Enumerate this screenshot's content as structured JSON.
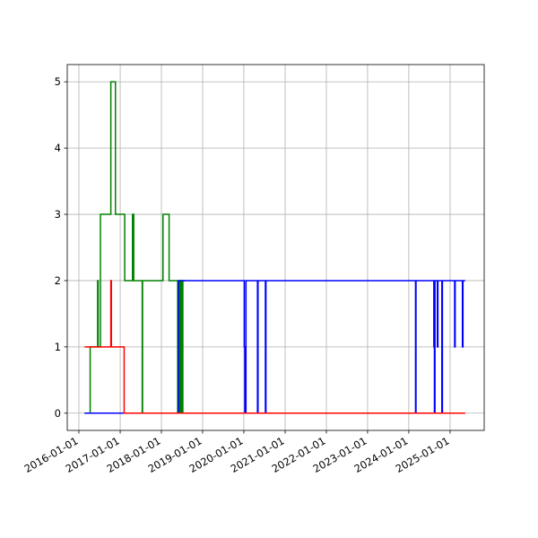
{
  "chart_data": {
    "type": "line",
    "drawstyle": "steps-post",
    "grid": true,
    "xlim": [
      "2015-09-20",
      "2025-10-30"
    ],
    "xticks": [
      "2016-01-01",
      "2017-01-01",
      "2018-01-01",
      "2019-01-01",
      "2020-01-01",
      "2021-01-01",
      "2022-01-01",
      "2023-01-01",
      "2024-01-01",
      "2025-01-01"
    ],
    "ylim": [
      -0.26,
      5.26
    ],
    "yticks": [
      0,
      1,
      2,
      3,
      4,
      5
    ],
    "series": [
      {
        "color": "#008000",
        "x": [
          "2016-02-20",
          "2016-04-10",
          "2016-06-15",
          "2016-06-20",
          "2016-07-10",
          "2016-10-10",
          "2016-11-20",
          "2017-02-10",
          "2017-04-20",
          "2017-05-01",
          "2017-07-15",
          "2017-07-18",
          "2018-01-15",
          "2018-03-10",
          "2018-05-25",
          "2018-05-28",
          "2018-06-05",
          "2018-06-08",
          "2018-06-15",
          "2018-06-18",
          "2018-06-25",
          "2018-06-28",
          "2018-07-05",
          "2018-07-10",
          "2018-08-01"
        ],
        "values": [
          0,
          1,
          2,
          1,
          3,
          5,
          3,
          2,
          3,
          2,
          0,
          2,
          3,
          2,
          0,
          2,
          0,
          2,
          0,
          2,
          0,
          2,
          0,
          2,
          2
        ]
      },
      {
        "color": "#0000ff",
        "x": [
          "2016-02-20",
          "2018-06-01",
          "2020-01-05",
          "2020-01-10",
          "2020-01-20",
          "2020-05-01",
          "2020-05-06",
          "2020-07-10",
          "2020-07-15",
          "2024-03-01",
          "2024-03-05",
          "2024-08-10",
          "2024-08-15",
          "2024-08-20",
          "2024-09-10",
          "2024-09-15",
          "2024-10-20",
          "2024-10-25",
          "2025-02-10",
          "2025-02-15",
          "2025-04-20",
          "2025-04-25",
          "2025-05-15"
        ],
        "values": [
          0,
          2,
          1,
          0,
          2,
          0,
          2,
          0,
          2,
          0,
          2,
          1,
          0,
          2,
          1,
          2,
          0,
          2,
          1,
          2,
          1,
          2,
          2
        ]
      },
      {
        "color": "#ff0000",
        "x": [
          "2016-02-20",
          "2016-10-10",
          "2016-10-15",
          "2017-02-05",
          "2025-05-15"
        ],
        "values": [
          1,
          2,
          1,
          0,
          0
        ]
      }
    ]
  }
}
